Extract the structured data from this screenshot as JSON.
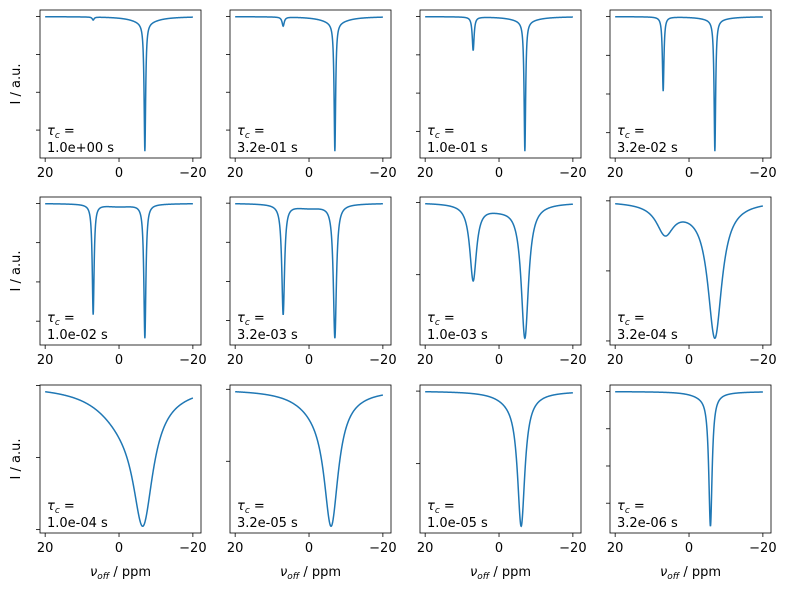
{
  "chart_data": {
    "type": "line",
    "layout": "3 rows x 4 columns",
    "line_color": "#1f77b4",
    "ylabel": "I / a.u.",
    "xlabel": "ν_off / ppm",
    "xlabel_main": "ν",
    "xlabel_sub": "off",
    "xlabel_rest": " / ppm",
    "xlim": [
      21.4,
      -22.2
    ],
    "x_range": [
      20,
      -20
    ],
    "xticks": [
      20,
      0,
      -20
    ],
    "xtick_labels": [
      "20",
      "0",
      "−20"
    ],
    "y_tick_labels_shown": false,
    "annotation_prefix": "τ",
    "annotation_sub": "c",
    "annotation_eq": " =",
    "model": "baseline 1.0 minus Lorentzian dips (center ppm, half-width ppm, depth a.u.)",
    "panels": [
      {
        "tau": "1.0e+00 s",
        "dips": [
          {
            "c": 7,
            "w": 0.3,
            "d": 0.02
          },
          {
            "c": -7,
            "w": 0.25,
            "d": 0.85
          },
          {
            "c": -7,
            "w": 4,
            "d": 0.04
          }
        ]
      },
      {
        "tau": "3.2e-01 s",
        "dips": [
          {
            "c": 7,
            "w": 0.35,
            "d": 0.06
          },
          {
            "c": -7,
            "w": 0.25,
            "d": 0.85
          },
          {
            "c": -7,
            "w": 4,
            "d": 0.04
          }
        ]
      },
      {
        "tau": "1.0e-01 s",
        "dips": [
          {
            "c": 7,
            "w": 0.3,
            "d": 0.22
          },
          {
            "c": -7,
            "w": 0.25,
            "d": 0.85
          },
          {
            "c": -7,
            "w": 4,
            "d": 0.03
          }
        ]
      },
      {
        "tau": "3.2e-02 s",
        "dips": [
          {
            "c": 7,
            "w": 0.25,
            "d": 0.48
          },
          {
            "c": -7,
            "w": 0.25,
            "d": 0.85
          },
          {
            "c": -7,
            "w": 4,
            "d": 0.02
          }
        ]
      },
      {
        "tau": "1.0e-02 s",
        "dips": [
          {
            "c": 7,
            "w": 0.3,
            "d": 0.7
          },
          {
            "c": -7,
            "w": 0.33,
            "d": 0.85
          },
          {
            "c": 0,
            "w": 6,
            "d": 0.02
          }
        ]
      },
      {
        "tau": "3.2e-03 s",
        "dips": [
          {
            "c": 7,
            "w": 0.45,
            "d": 0.7
          },
          {
            "c": -7,
            "w": 0.5,
            "d": 0.85
          },
          {
            "c": 0,
            "w": 6,
            "d": 0.03
          }
        ]
      },
      {
        "tau": "1.0e-03 s",
        "dips": [
          {
            "c": 7,
            "w": 1.1,
            "d": 0.52
          },
          {
            "c": -7,
            "w": 1.2,
            "d": 0.92
          },
          {
            "c": 0,
            "w": 6,
            "d": 0.04
          }
        ]
      },
      {
        "tau": "3.2e-04 s",
        "dips": [
          {
            "c": 6.5,
            "w": 2.8,
            "d": 0.2
          },
          {
            "c": -7,
            "w": 2.3,
            "d": 0.95
          },
          {
            "c": 0,
            "w": 8,
            "d": 0.04
          }
        ]
      },
      {
        "tau": "1.0e-04 s",
        "dips": [
          {
            "c": -6.5,
            "w": 3.2,
            "d": 0.8
          },
          {
            "c": -2,
            "w": 9,
            "d": 0.22
          }
        ]
      },
      {
        "tau": "3.2e-05 s",
        "dips": [
          {
            "c": -6,
            "w": 2.3,
            "d": 0.85
          },
          {
            "c": -3,
            "w": 7,
            "d": 0.12
          }
        ]
      },
      {
        "tau": "1.0e-05 s",
        "dips": [
          {
            "c": -6,
            "w": 1.2,
            "d": 0.88
          },
          {
            "c": -4,
            "w": 5,
            "d": 0.06
          }
        ]
      },
      {
        "tau": "3.2e-06 s",
        "dips": [
          {
            "c": -5.8,
            "w": 0.55,
            "d": 0.88
          },
          {
            "c": -4,
            "w": 4,
            "d": 0.03
          }
        ]
      }
    ]
  }
}
